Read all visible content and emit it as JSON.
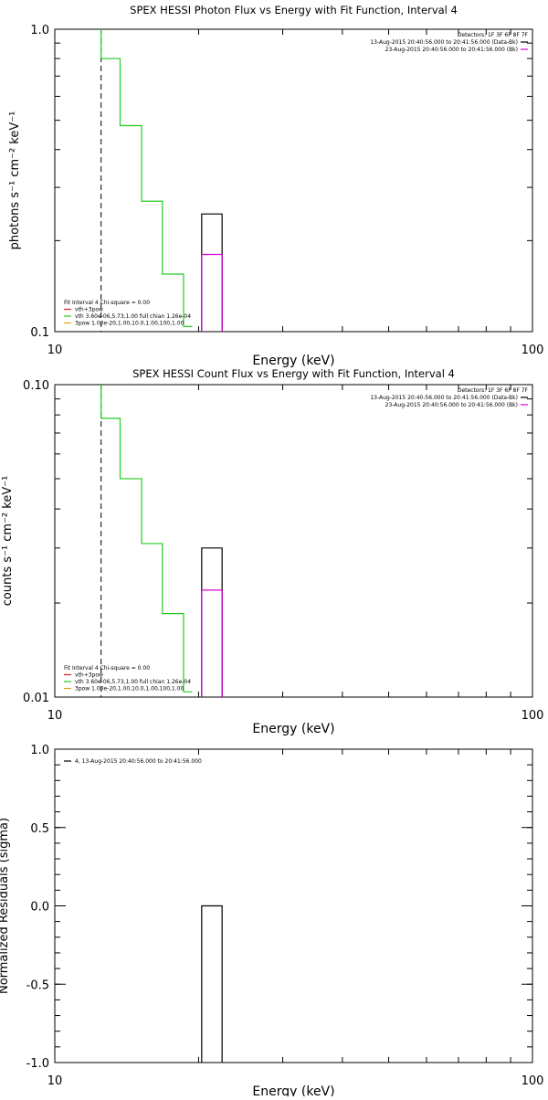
{
  "chart_data": [
    {
      "type": "line",
      "title": "SPEX HESSI Photon Flux vs Energy with Fit Function, Interval 4",
      "xlabel": "Energy (keV)",
      "ylabel": "photons s⁻¹ cm⁻² keV⁻¹",
      "x_scale": "log",
      "y_scale": "log",
      "xlim": [
        10,
        100
      ],
      "ylim": [
        0.1,
        1.0
      ],
      "x_ticks": [
        10,
        100
      ],
      "x_tick_labels": [
        "10",
        "100"
      ],
      "y_ticks": [
        0.1,
        1.0
      ],
      "y_tick_labels": [
        "0.1",
        "1.0"
      ],
      "vline_x": 12.5,
      "header_lines": [
        {
          "text": "Detectors: 1F 3F 6F 8F 7F",
          "color": null
        },
        {
          "text": "13-Aug-2015 20:40:56.000 to 20:41:56.000 (Data-Bk)",
          "color": "#000000"
        },
        {
          "text": "23-Aug-2015 20:40:56.000 to 20:41:56.000 (Bk)",
          "color": "#d400d4"
        }
      ],
      "legend_lines": [
        {
          "text": "Fit Interval  4    Chi-square = 0.00",
          "color": null
        },
        {
          "text": "vth+3pow",
          "color": "#d42020"
        },
        {
          "text": "vth 3.60e-06,5.73,1.00   full chian 1.26e-04",
          "color": "#22cc22"
        },
        {
          "text": "3pow 1.00e-20,1.00,10.0,1.00,100,1.00",
          "color": "#e0a020"
        }
      ],
      "series": [
        {
          "name": "vth",
          "color": "#22cc22",
          "style": "step",
          "x": [
            12.5,
            12.5,
            13.7,
            13.7,
            15.2,
            15.2,
            16.8,
            16.8,
            18.6,
            18.6,
            19.4
          ],
          "y": [
            1.0,
            0.8,
            0.8,
            0.48,
            0.48,
            0.27,
            0.27,
            0.155,
            0.155,
            0.104,
            0.104
          ]
        },
        {
          "name": "Data-Bk",
          "color": "#000000",
          "style": "box",
          "x0": 20.3,
          "x1": 22.4,
          "y": 0.245
        },
        {
          "name": "Bk",
          "color": "#d400d4",
          "style": "box",
          "x0": 20.3,
          "x1": 22.4,
          "y": 0.18
        }
      ]
    },
    {
      "type": "line",
      "title": "SPEX HESSI Count Flux vs Energy with Fit Function, Interval 4",
      "xlabel": "Energy (keV)",
      "ylabel": "counts s⁻¹ cm⁻² keV⁻¹",
      "x_scale": "log",
      "y_scale": "log",
      "xlim": [
        10,
        100
      ],
      "ylim": [
        0.01,
        0.1
      ],
      "x_ticks": [
        10,
        100
      ],
      "x_tick_labels": [
        "10",
        "100"
      ],
      "y_ticks": [
        0.01,
        0.1
      ],
      "y_tick_labels": [
        "0.01",
        "0.10"
      ],
      "vline_x": 12.5,
      "header_lines": [
        {
          "text": "Detectors: 1F 3F 6F 8F 7F",
          "color": null
        },
        {
          "text": "13-Aug-2015 20:40:56.000 to 20:41:56.000 (Data-Bk)",
          "color": "#000000"
        },
        {
          "text": "23-Aug-2015 20:40:56.000 to 20:41:56.000 (Bk)",
          "color": "#d400d4"
        }
      ],
      "legend_lines": [
        {
          "text": "Fit Interval  4    Chi-square = 0.00",
          "color": null
        },
        {
          "text": "vth+3pow",
          "color": "#d42020"
        },
        {
          "text": "vth 3.60e-06,5.73,1.00   full chian 1.26e-04",
          "color": "#22cc22"
        },
        {
          "text": "3pow 1.00e-20,1.00,10.0,1.00,100,1.00",
          "color": "#e0a020"
        }
      ],
      "series": [
        {
          "name": "vth",
          "color": "#22cc22",
          "style": "step",
          "x": [
            12.5,
            12.5,
            13.7,
            13.7,
            15.2,
            15.2,
            16.8,
            16.8,
            18.6,
            18.6,
            19.4
          ],
          "y": [
            0.1,
            0.078,
            0.078,
            0.05,
            0.05,
            0.031,
            0.031,
            0.0185,
            0.0185,
            0.0104,
            0.0104
          ]
        },
        {
          "name": "Data-Bk",
          "color": "#000000",
          "style": "box",
          "x0": 20.3,
          "x1": 22.4,
          "y": 0.03
        },
        {
          "name": "Bk",
          "color": "#d400d4",
          "style": "box",
          "x0": 20.3,
          "x1": 22.4,
          "y": 0.022
        }
      ]
    },
    {
      "type": "line",
      "title": "",
      "xlabel": "Energy (keV)",
      "ylabel": "Normalized Residuals (sigma)",
      "x_scale": "log",
      "y_scale": "linear",
      "xlim": [
        10,
        100
      ],
      "ylim": [
        -1.0,
        1.0
      ],
      "x_ticks": [
        10,
        100
      ],
      "x_tick_labels": [
        "10",
        "100"
      ],
      "y_ticks": [
        -1.0,
        -0.5,
        0.0,
        0.5,
        1.0
      ],
      "y_tick_labels": [
        "-1.0",
        "-0.5",
        "0.0",
        "0.5",
        "1.0"
      ],
      "legend_lines": [
        {
          "text": "4, 13-Aug-2015 20:40:56.000 to 20:41:56.000",
          "color": "#000000"
        }
      ],
      "series": [
        {
          "name": "residual",
          "color": "#000000",
          "style": "box",
          "x0": 20.3,
          "x1": 22.4,
          "y": 0.0
        }
      ]
    }
  ]
}
